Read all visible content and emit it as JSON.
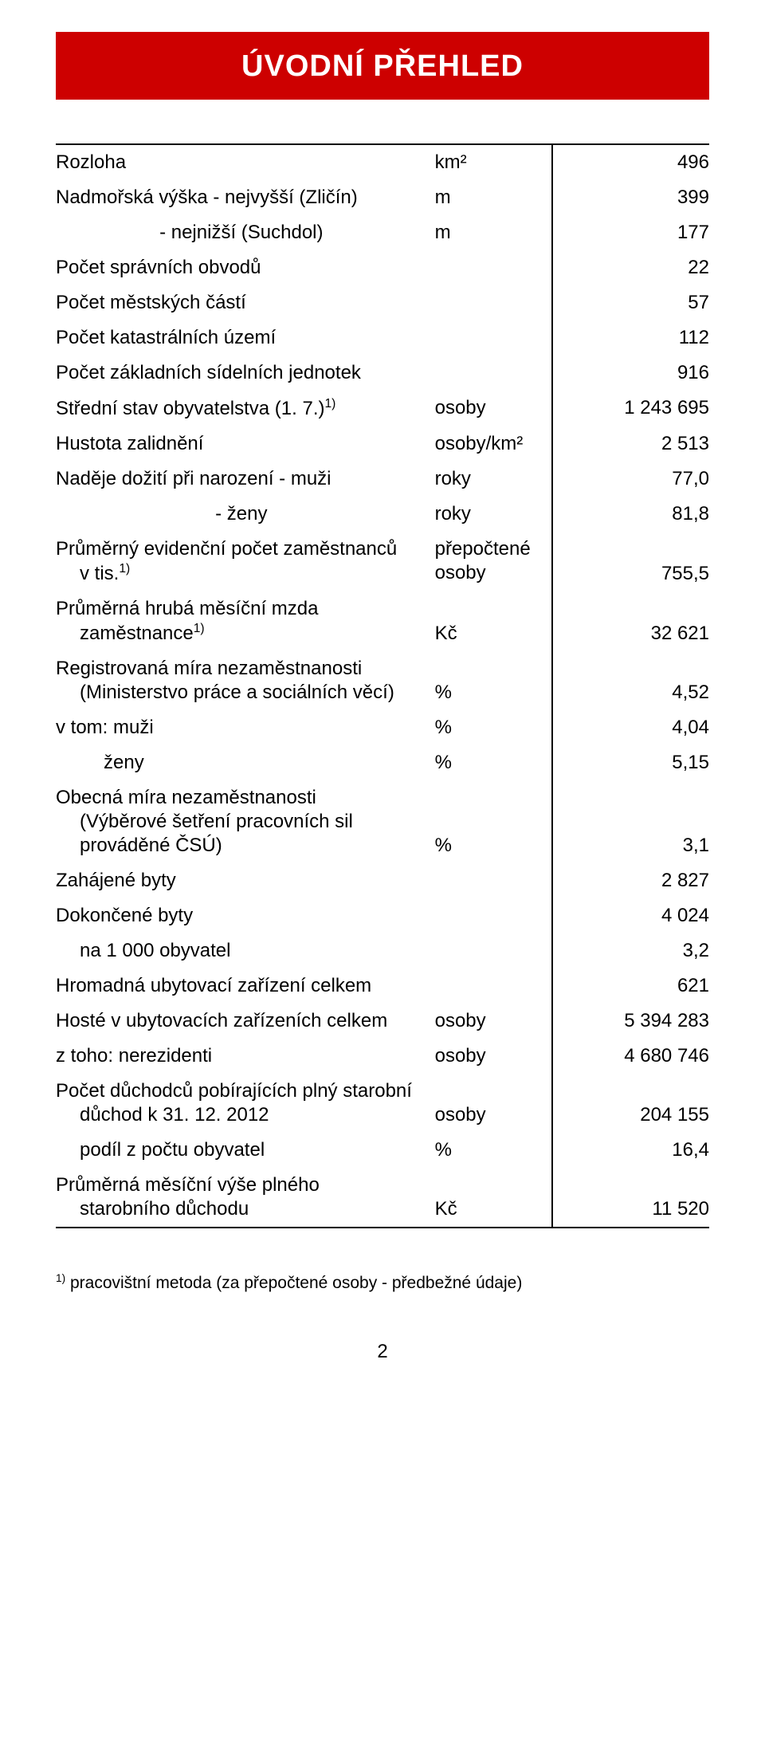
{
  "title": "ÚVODNÍ PŘEHLED",
  "unit_km2": "km²",
  "unit_m": "m",
  "unit_osoby": "osoby",
  "unit_osobykm2": "osoby/km²",
  "unit_roky": "roky",
  "unit_prepoctene": "přepočtené osoby",
  "unit_kc": "Kč",
  "unit_pct": "%",
  "rows": {
    "rozloha": {
      "label": "Rozloha",
      "unit": "km²",
      "value": "496"
    },
    "vyska_max": {
      "label": "Nadmořská výška  - nejvyšší (Zličín)",
      "unit": "m",
      "value": "399"
    },
    "vyska_min": {
      "label": "- nejnižší (Suchdol)",
      "unit": "m",
      "value": "177"
    },
    "spravni": {
      "label": "Počet správních obvodů",
      "unit": "",
      "value": "22"
    },
    "mestske": {
      "label": "Počet městských částí",
      "unit": "",
      "value": "57"
    },
    "katastr": {
      "label": "Počet katastrálních území",
      "unit": "",
      "value": "112"
    },
    "sidelni": {
      "label": "Počet základních sídelních jednotek",
      "unit": "",
      "value": "916"
    },
    "stredni": {
      "label_pre": "Střední stav obyvatelstva (1. 7.)",
      "sup": "1)",
      "unit": "osoby",
      "value": "1 243 695"
    },
    "hustota": {
      "label": "Hustota zalidnění",
      "unit": "osoby/km²",
      "value": "2 513"
    },
    "doziti_m": {
      "label": "Naděje dožití při narození  - muži",
      "unit": "roky",
      "value": "77,0"
    },
    "doziti_z": {
      "label": "- ženy",
      "unit": "roky",
      "value": "81,8"
    },
    "evid": {
      "label_pre": "Průměrný evidenční počet zaměstnanců",
      "label_line2": "v tis.",
      "sup": "1)",
      "unit_line1": "přepočtené",
      "unit_line2": "osoby",
      "value": "755,5"
    },
    "mzda": {
      "label_line1": "Průměrná hrubá měsíční mzda",
      "label_line2_pre": "zaměstnance",
      "sup": "1)",
      "unit": "Kč",
      "value": "32 621"
    },
    "reg_nezam": {
      "label_line1": "Registrovaná míra nezaměstnanosti",
      "label_line2": "(Ministerstvo práce a sociálních věcí)",
      "unit": "%",
      "value": "4,52"
    },
    "muzi": {
      "label": "v tom: muži",
      "unit": "%",
      "value": "4,04"
    },
    "zeny": {
      "label": "ženy",
      "unit": "%",
      "value": "5,15"
    },
    "obecna": {
      "label_line1": "Obecná míra nezaměstnanosti",
      "label_line2": "(Výběrové šetření pracovních sil",
      "label_line3": "prováděné ČSÚ)",
      "unit": "%",
      "value": "3,1"
    },
    "zahajene": {
      "label": "Zahájené byty",
      "unit": "",
      "value": "2 827"
    },
    "dokoncene": {
      "label": "Dokončené byty",
      "unit": "",
      "value": "4 024"
    },
    "na1000": {
      "label": "na 1 000 obyvatel",
      "unit": "",
      "value": "3,2"
    },
    "ubyt_zar": {
      "label": "Hromadná ubytovací zařízení celkem",
      "unit": "",
      "value": "621"
    },
    "hoste": {
      "label": "Hosté v ubytovacích zařízeních celkem",
      "unit": "osoby",
      "value": "5 394 283"
    },
    "nerezid": {
      "label": "z toho: nerezidenti",
      "unit": "osoby",
      "value": "4 680 746"
    },
    "duchodci": {
      "label_line1": "Počet důchodců pobírajících plný starobní",
      "label_line2": "důchod k 31. 12. 2012",
      "unit": "osoby",
      "value": "204 155"
    },
    "podil": {
      "label": "podíl z počtu obyvatel",
      "unit": "%",
      "value": "16,4"
    },
    "vyse_duch": {
      "label_line1": "Průměrná měsíční výše plného",
      "label_line2": "starobního důchodu",
      "unit": "Kč",
      "value": "11 520"
    }
  },
  "footnote_sup": "1)",
  "footnote_text": " pracovištní metoda (za přepočtené osoby - předbežné údaje)",
  "page_number": "2",
  "colors": {
    "title_bg": "#cd0000",
    "title_fg": "#ffffff",
    "rule": "#000000",
    "text": "#000000",
    "page_bg": "#ffffff"
  },
  "typography": {
    "title_fontsize_pt": 28,
    "body_fontsize_pt": 18,
    "footnote_fontsize_pt": 16,
    "font_family": "Arial"
  },
  "table_layout": {
    "col_label_width_pct": 58,
    "col_unit_width_pct": 18,
    "col_value_width_pct": 24,
    "unit_align": "left",
    "value_align": "right",
    "vertical_rule_after_unit": true,
    "top_rule": true,
    "bottom_rule": true
  }
}
